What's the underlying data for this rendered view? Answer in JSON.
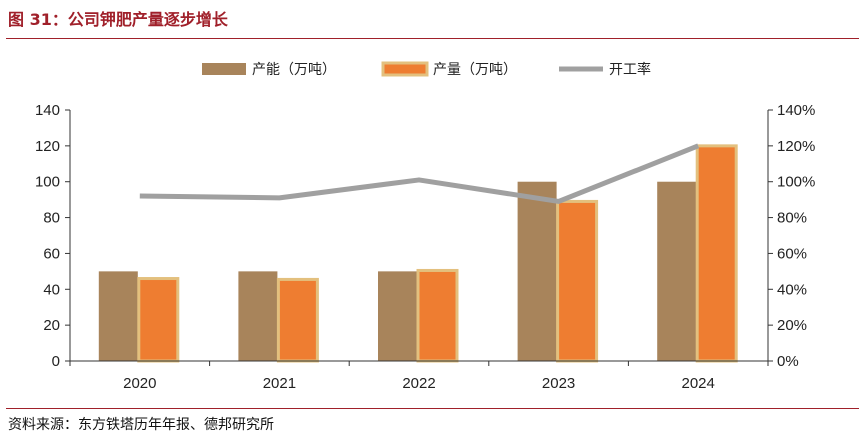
{
  "header": {
    "title": "图 31：公司钾肥产量逐步增长"
  },
  "footer": {
    "source": "资料来源：东方铁塔历年年报、德邦研究所"
  },
  "colors": {
    "capacity": "#a8845b",
    "output": "#ee7d31",
    "output_border": "#e3c07e",
    "rate": "#a0a0a0",
    "accent": "#a0202a"
  },
  "chart_data": {
    "type": "bar",
    "categories": [
      "2020",
      "2021",
      "2022",
      "2023",
      "2024"
    ],
    "series": [
      {
        "name": "产能（万吨）",
        "type": "bar",
        "axis": "left",
        "values": [
          50,
          50,
          50,
          100,
          100
        ]
      },
      {
        "name": "产量（万吨）",
        "type": "bar",
        "axis": "left",
        "values": [
          46,
          45.5,
          50.5,
          89,
          120
        ]
      },
      {
        "name": "开工率",
        "type": "line",
        "axis": "right",
        "values": [
          92,
          91,
          101,
          89,
          120
        ]
      }
    ],
    "left_axis": {
      "ylim": [
        0,
        140
      ],
      "ticks": [
        "0",
        "20",
        "40",
        "60",
        "80",
        "100",
        "120",
        "140"
      ]
    },
    "right_axis": {
      "ylim": [
        0,
        140
      ],
      "unit": "%",
      "ticks": [
        "0%",
        "20%",
        "40%",
        "60%",
        "80%",
        "100%",
        "120%",
        "140%"
      ]
    },
    "legend_position": "top-center",
    "grid": false
  }
}
